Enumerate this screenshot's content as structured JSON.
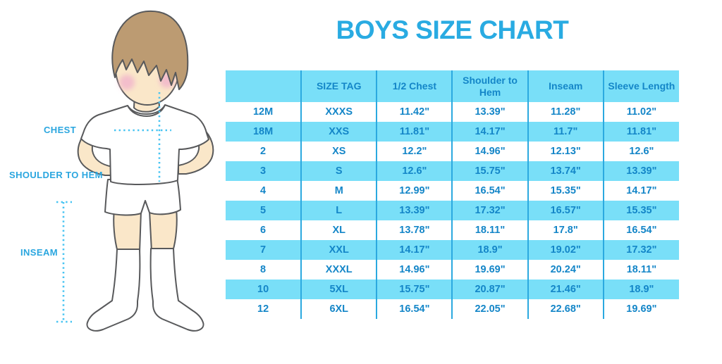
{
  "title": "BOYS SIZE CHART",
  "diagram": {
    "chest_label": "CHEST",
    "shoulder_label": "SHOULDER TO HEM",
    "inseam_label": "INSEAM"
  },
  "chart_data": {
    "type": "table",
    "title": "BOYS SIZE CHART",
    "columns": [
      "",
      "SIZE TAG",
      "1/2 Chest",
      "Shoulder to Hem",
      "Inseam",
      "Sleeve Length"
    ],
    "rows": [
      [
        "12M",
        "XXXS",
        "11.42\"",
        "13.39\"",
        "11.28\"",
        "11.02\""
      ],
      [
        "18M",
        "XXS",
        "11.81\"",
        "14.17\"",
        "11.7\"",
        "11.81\""
      ],
      [
        "2",
        "XS",
        "12.2\"",
        "14.96\"",
        "12.13\"",
        "12.6\""
      ],
      [
        "3",
        "S",
        "12.6\"",
        "15.75\"",
        "13.74\"",
        "13.39\""
      ],
      [
        "4",
        "M",
        "12.99\"",
        "16.54\"",
        "15.35\"",
        "14.17\""
      ],
      [
        "5",
        "L",
        "13.39\"",
        "17.32\"",
        "16.57\"",
        "15.35\""
      ],
      [
        "6",
        "XL",
        "13.78\"",
        "18.11\"",
        "17.8\"",
        "16.54\""
      ],
      [
        "7",
        "XXL",
        "14.17\"",
        "18.9\"",
        "19.02\"",
        "17.32\""
      ],
      [
        "8",
        "XXXL",
        "14.96\"",
        "19.69\"",
        "20.24\"",
        "18.11\""
      ],
      [
        "10",
        "5XL",
        "15.75\"",
        "20.87\"",
        "21.46\"",
        "18.9\""
      ],
      [
        "12",
        "6XL",
        "16.54\"",
        "22.05\"",
        "22.68\"",
        "19.69\""
      ]
    ],
    "layout": {
      "alternating_row_fill": "blue on even rows, header filled",
      "column_separators": true,
      "horizontal_gridlines": false
    }
  },
  "colors": {
    "accent_blue": "#29ABE2",
    "header_fill": "#79DFF8",
    "row_alt_fill": "#79DFF8",
    "grid_line": "#2BA9E0",
    "cell_text": "#1486C8",
    "label_blue": "#2AA6DF",
    "dot_blue": "#47C4F2",
    "skin": "#FAE7C9",
    "hair": "#BC9B72",
    "cheek": "#F3BECB",
    "outline": "#58595B"
  }
}
